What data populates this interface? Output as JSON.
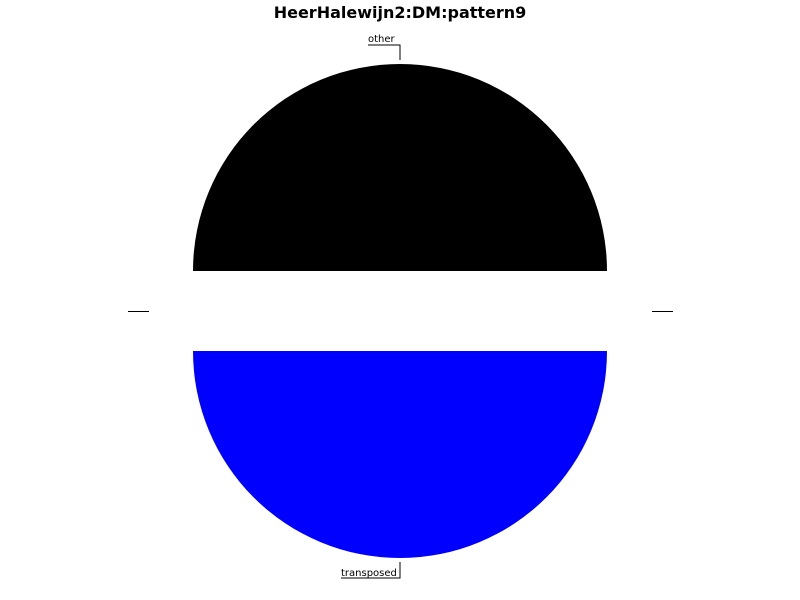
{
  "chart_data": {
    "type": "pie",
    "title": "HeerHalewijn2:DM:pattern9",
    "slices": [
      {
        "label": "other",
        "value": 50,
        "color": "#000000"
      },
      {
        "label": "transposed",
        "value": 50,
        "color": "#0000ff"
      }
    ],
    "legend": "none"
  }
}
